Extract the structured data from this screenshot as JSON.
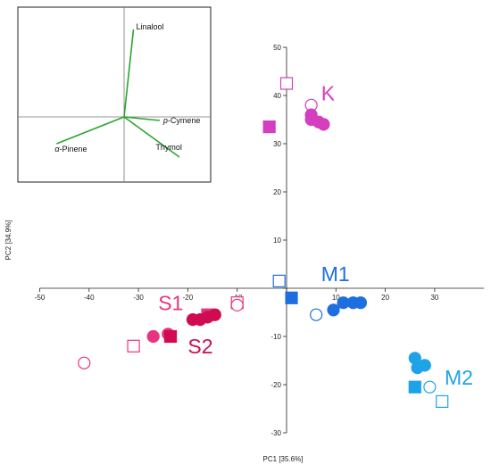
{
  "chart_data": {
    "type": "scatter",
    "xlabel": "PC1 [35.6%]",
    "ylabel": "PC2 [34.9%]",
    "xlim": [
      -50,
      40
    ],
    "ylim": [
      -30,
      50
    ],
    "x_ticks": [
      -50,
      -40,
      -30,
      -20,
      -10,
      0,
      10,
      20,
      30
    ],
    "y_ticks": [
      -30,
      -20,
      -10,
      0,
      10,
      20,
      30,
      40,
      50
    ],
    "x_tick_labels": [
      "-50",
      "-40",
      "-30",
      "-20",
      "-10",
      "",
      "10",
      "20",
      "30"
    ],
    "y_tick_labels": [
      "-30",
      "-20",
      "-10",
      "",
      "10",
      "20",
      "30",
      "40",
      "50"
    ],
    "groups": [
      {
        "name": "K",
        "color": "#d43fbf",
        "label_at": [
          7,
          39
        ],
        "label_size": 23,
        "points": [
          {
            "x": 0,
            "y": 42.5,
            "marker": "square",
            "filled": false
          },
          {
            "x": -3.5,
            "y": 33.5,
            "marker": "square",
            "filled": true
          },
          {
            "x": 5,
            "y": 38,
            "marker": "circle",
            "filled": false
          },
          {
            "x": 5,
            "y": 36,
            "marker": "circle",
            "filled": true
          },
          {
            "x": 5,
            "y": 35,
            "marker": "circle",
            "filled": true
          },
          {
            "x": 6.5,
            "y": 34.5,
            "marker": "circle",
            "filled": true
          },
          {
            "x": 7.5,
            "y": 34,
            "marker": "circle",
            "filled": true
          }
        ]
      },
      {
        "name": "M1",
        "color": "#1d6fe0",
        "label_at": [
          7,
          1.5
        ],
        "label_size": 23,
        "points": [
          {
            "x": -1.5,
            "y": 1.5,
            "marker": "square",
            "filled": false
          },
          {
            "x": 1,
            "y": -2,
            "marker": "square",
            "filled": true
          },
          {
            "x": 6,
            "y": -5.5,
            "marker": "circle",
            "filled": false
          },
          {
            "x": 9.5,
            "y": -4.5,
            "marker": "circle",
            "filled": true
          },
          {
            "x": 11.5,
            "y": -3,
            "marker": "circle",
            "filled": true
          },
          {
            "x": 13.5,
            "y": -3,
            "marker": "circle",
            "filled": true
          },
          {
            "x": 15,
            "y": -3,
            "marker": "circle",
            "filled": true
          }
        ]
      },
      {
        "name": "M2",
        "color": "#1fa3e8",
        "label_at": [
          32,
          -20
        ],
        "label_size": 23,
        "points": [
          {
            "x": 26,
            "y": -14.5,
            "marker": "circle",
            "filled": true
          },
          {
            "x": 26.5,
            "y": -16.5,
            "marker": "circle",
            "filled": true
          },
          {
            "x": 28,
            "y": -16,
            "marker": "circle",
            "filled": true
          },
          {
            "x": 29,
            "y": -20.5,
            "marker": "circle",
            "filled": false
          },
          {
            "x": 26,
            "y": -20.5,
            "marker": "square",
            "filled": true
          },
          {
            "x": 31.5,
            "y": -23.5,
            "marker": "square",
            "filled": false
          }
        ]
      },
      {
        "name": "S1",
        "color": "#e8357f",
        "label_at": [
          -26,
          -4.5
        ],
        "label_size": 23,
        "points": [
          {
            "x": -41,
            "y": -15.5,
            "marker": "circle",
            "filled": false
          },
          {
            "x": -31,
            "y": -12,
            "marker": "square",
            "filled": false
          },
          {
            "x": -27,
            "y": -10,
            "marker": "circle",
            "filled": true
          },
          {
            "x": -24,
            "y": -9.5,
            "marker": "circle",
            "filled": true
          },
          {
            "x": -16,
            "y": -5.5,
            "marker": "square",
            "filled": true
          },
          {
            "x": -10,
            "y": -3,
            "marker": "square",
            "filled": false
          },
          {
            "x": -10,
            "y": -3.5,
            "marker": "circle",
            "filled": false
          }
        ]
      },
      {
        "name": "S2",
        "color": "#d10b52",
        "label_at": [
          -20,
          -13.5
        ],
        "label_size": 23,
        "points": [
          {
            "x": -23.5,
            "y": -10,
            "marker": "square",
            "filled": true
          },
          {
            "x": -19,
            "y": -6.5,
            "marker": "circle",
            "filled": true
          },
          {
            "x": -17.5,
            "y": -6.5,
            "marker": "circle",
            "filled": true
          },
          {
            "x": -16,
            "y": -6,
            "marker": "circle",
            "filled": true
          },
          {
            "x": -14.5,
            "y": -5.5,
            "marker": "circle",
            "filled": true
          }
        ]
      }
    ],
    "inset": {
      "type": "loading_plot",
      "line_color": "#2aa52e",
      "vectors": [
        {
          "name": "Linalool",
          "x": 0.1,
          "y": 0.98,
          "label_anchor": "start",
          "label_dx": 3,
          "label_dy": 0,
          "italic_prefix": ""
        },
        {
          "name": "-Cymene",
          "x": 0.38,
          "y": -0.04,
          "label_anchor": "start",
          "label_dx": 4,
          "label_dy": 3,
          "italic_prefix": "p"
        },
        {
          "name": "Thymol",
          "x": 0.59,
          "y": -0.45,
          "label_anchor": "end",
          "label_dx": 3,
          "label_dy": -8,
          "italic_prefix": ""
        },
        {
          "name": "-Pinene",
          "x": -0.72,
          "y": -0.3,
          "label_anchor": "start",
          "label_dx": -2,
          "label_dy": 9,
          "italic_prefix": "α"
        }
      ]
    }
  }
}
